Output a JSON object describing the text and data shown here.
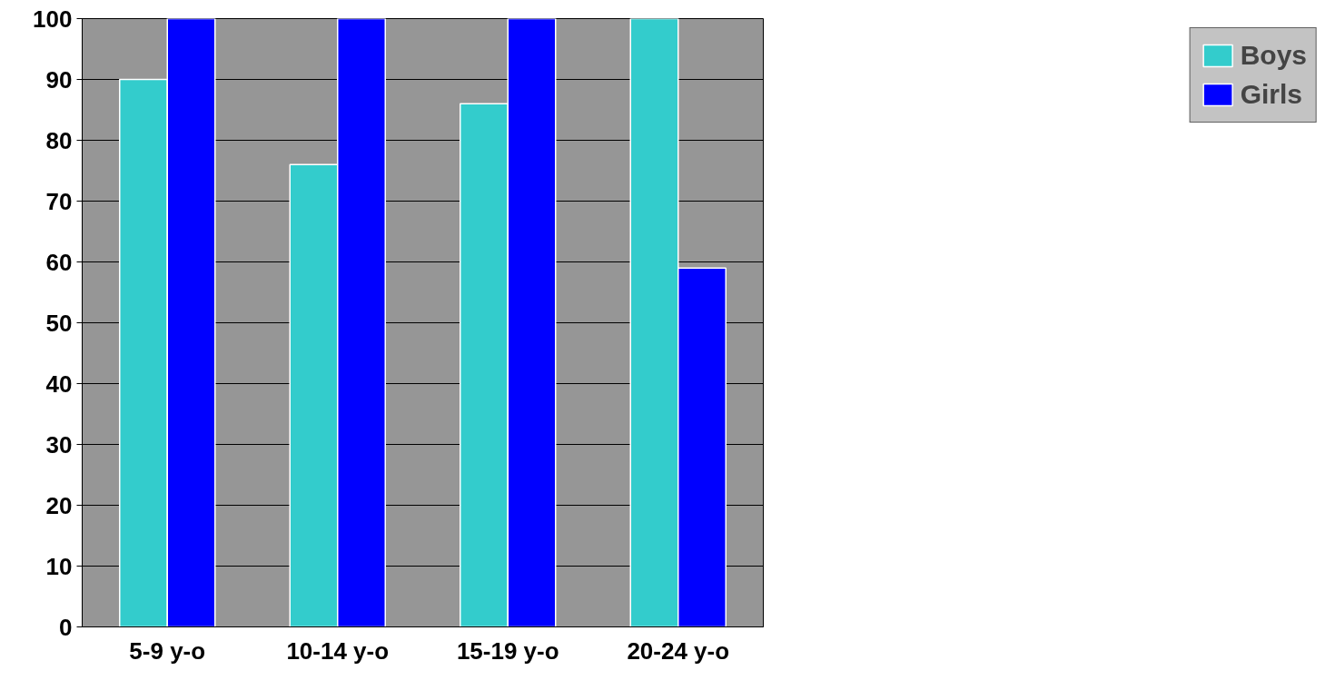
{
  "chart_data": {
    "type": "bar",
    "categories": [
      "5-9 y-o",
      "10-14 y-o",
      "15-19 y-o",
      "20-24 y-o"
    ],
    "series": [
      {
        "name": "Boys",
        "color": "#33cccc",
        "values": [
          90,
          76,
          86,
          100
        ]
      },
      {
        "name": "Girls",
        "color": "#0000ff",
        "values": [
          100,
          100,
          100,
          59
        ]
      }
    ],
    "ylim": [
      0,
      100
    ],
    "yticks": [
      0,
      10,
      20,
      30,
      40,
      50,
      60,
      70,
      80,
      90,
      100
    ],
    "grid": "y",
    "legend": "right"
  }
}
